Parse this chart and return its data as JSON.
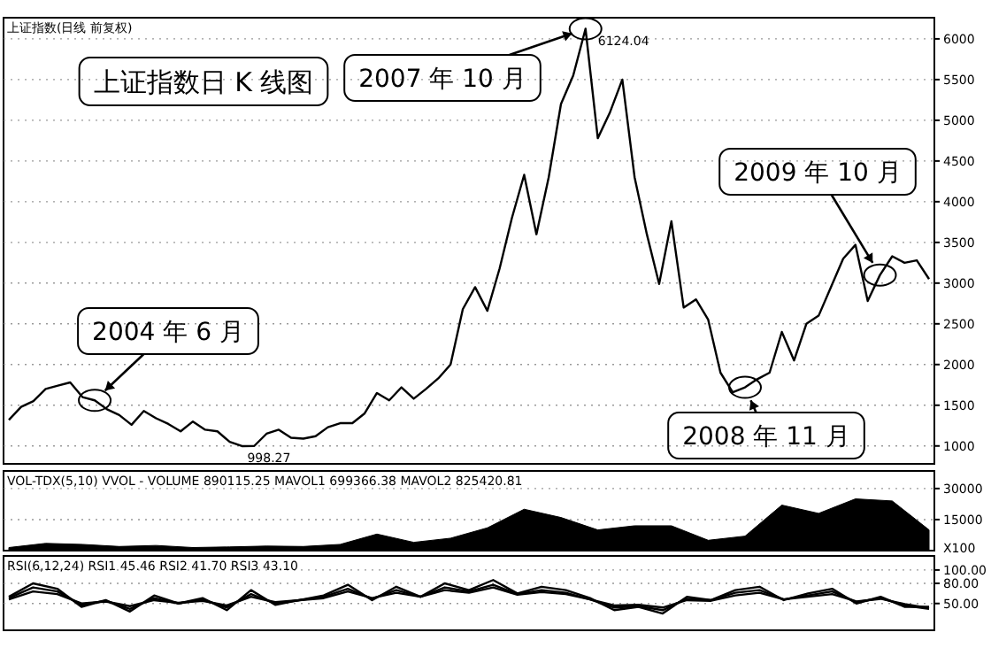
{
  "chart_data": [
    {
      "type": "line",
      "title": "上证指数(日线 前复权)",
      "categories": [
        null,
        null,
        null,
        null,
        null,
        null,
        null,
        null,
        null,
        null,
        null,
        null,
        null,
        null,
        null,
        null,
        null,
        null,
        null,
        null,
        null,
        null,
        null,
        null,
        null,
        null,
        null,
        null,
        null,
        null,
        null,
        null,
        null,
        null,
        null,
        null,
        null,
        null,
        null,
        null,
        null,
        null,
        null,
        null,
        null,
        null,
        null,
        null,
        null,
        null,
        null,
        null,
        null,
        null,
        null,
        null,
        null,
        null,
        null,
        null,
        null,
        null,
        null,
        null,
        null,
        null,
        null,
        null,
        null,
        null,
        null,
        null,
        null,
        null,
        null,
        null
      ],
      "series": [
        {
          "color": "#000000",
          "values": [
            1320,
            1480,
            1550,
            1700,
            1740,
            1780,
            1600,
            1560,
            1450,
            1380,
            1260,
            1430,
            1340,
            1270,
            1180,
            1300,
            1200,
            1180,
            1050,
            998,
            1000,
            1150,
            1200,
            1100,
            1090,
            1120,
            1230,
            1280,
            1280,
            1400,
            1650,
            1560,
            1720,
            1580,
            1700,
            1830,
            2000,
            2680,
            2950,
            2660,
            3180,
            3800,
            4330,
            3600,
            4300,
            5200,
            5550,
            6124,
            4780,
            5100,
            5500,
            4300,
            3600,
            2990,
            3760,
            2700,
            2800,
            2550,
            1900,
            1660,
            1720,
            1820,
            1900,
            2400,
            2050,
            2500,
            2600,
            2950,
            3300,
            3470,
            2780,
            3100,
            3330,
            3250,
            3280,
            3050
          ]
        }
      ],
      "ylim": [
        780,
        6260
      ],
      "yticks": [
        1000,
        1500,
        2000,
        2500,
        3000,
        3500,
        4000,
        4500,
        5000,
        5500,
        6000
      ],
      "tick_labels": "y",
      "grid": "y",
      "annotations": [
        "上证指数日 K 线图",
        "2007 年 10 月",
        "6124.04",
        "2004 年 6 月",
        "998.27",
        "2008 年 11 月",
        "2009 年 10 月"
      ]
    },
    {
      "type": "area",
      "title": "VOL-TDX(5,10) VVOL - VOLUME 890115.25 MAVOL1 699366.38 MAVOL2 825420.81",
      "categories": [
        null,
        null,
        null,
        null,
        null,
        null,
        null,
        null,
        null,
        null,
        null,
        null,
        null,
        null,
        null,
        null,
        null,
        null,
        null,
        null,
        null,
        null,
        null,
        null,
        null,
        null
      ],
      "series": [
        {
          "color": "#000000",
          "values": [
            1500,
            3500,
            3000,
            2000,
            2500,
            1500,
            1800,
            2200,
            2000,
            3000,
            8000,
            4000,
            6000,
            11000,
            20000,
            16000,
            10000,
            12000,
            12000,
            5000,
            7000,
            22000,
            18000,
            25000,
            24000,
            10000
          ]
        }
      ],
      "ylim": [
        0,
        38500
      ],
      "yticks": [
        15000,
        30000
      ],
      "tick_labels": "y",
      "grid": "y",
      "annotations": [
        "X100"
      ]
    },
    {
      "type": "line",
      "title": "RSI(6,12,24) RSI1 45.46 RSI2 41.70 RSI3 43.10",
      "categories": [
        null,
        null,
        null,
        null,
        null,
        null,
        null,
        null,
        null,
        null,
        null,
        null,
        null,
        null,
        null,
        null,
        null,
        null,
        null,
        null,
        null,
        null,
        null,
        null,
        null,
        null,
        null,
        null,
        null,
        null,
        null,
        null,
        null,
        null,
        null,
        null,
        null,
        null,
        null
      ],
      "series": [
        {
          "color": "#000000",
          "values": [
            60,
            80,
            72,
            45,
            55,
            38,
            62,
            50,
            58,
            40,
            70,
            48,
            55,
            62,
            78,
            55,
            75,
            60,
            80,
            70,
            85,
            65,
            75,
            70,
            58,
            40,
            45,
            35,
            60,
            55,
            70,
            75,
            55,
            65,
            72,
            50,
            60,
            45,
            45
          ]
        },
        {
          "color": "#000000",
          "values": [
            58,
            74,
            68,
            48,
            54,
            42,
            58,
            50,
            56,
            44,
            64,
            50,
            55,
            60,
            72,
            57,
            70,
            60,
            74,
            68,
            78,
            64,
            70,
            66,
            56,
            44,
            46,
            40,
            57,
            55,
            66,
            70,
            56,
            62,
            68,
            52,
            58,
            47,
            42
          ]
        },
        {
          "color": "#000000",
          "values": [
            56,
            68,
            64,
            50,
            53,
            46,
            55,
            51,
            54,
            47,
            60,
            52,
            55,
            58,
            68,
            58,
            66,
            60,
            70,
            66,
            74,
            63,
            67,
            64,
            56,
            47,
            48,
            44,
            55,
            54,
            62,
            66,
            56,
            60,
            64,
            53,
            57,
            49,
            43
          ]
        }
      ],
      "ylim": [
        10,
        121
      ],
      "yticks": [
        {
          "value": 100,
          "label": "100.00"
        },
        {
          "value": 80,
          "label": "80.00"
        },
        {
          "value": 50,
          "label": "50.00"
        }
      ],
      "tick_labels": "y",
      "grid": "y"
    }
  ]
}
